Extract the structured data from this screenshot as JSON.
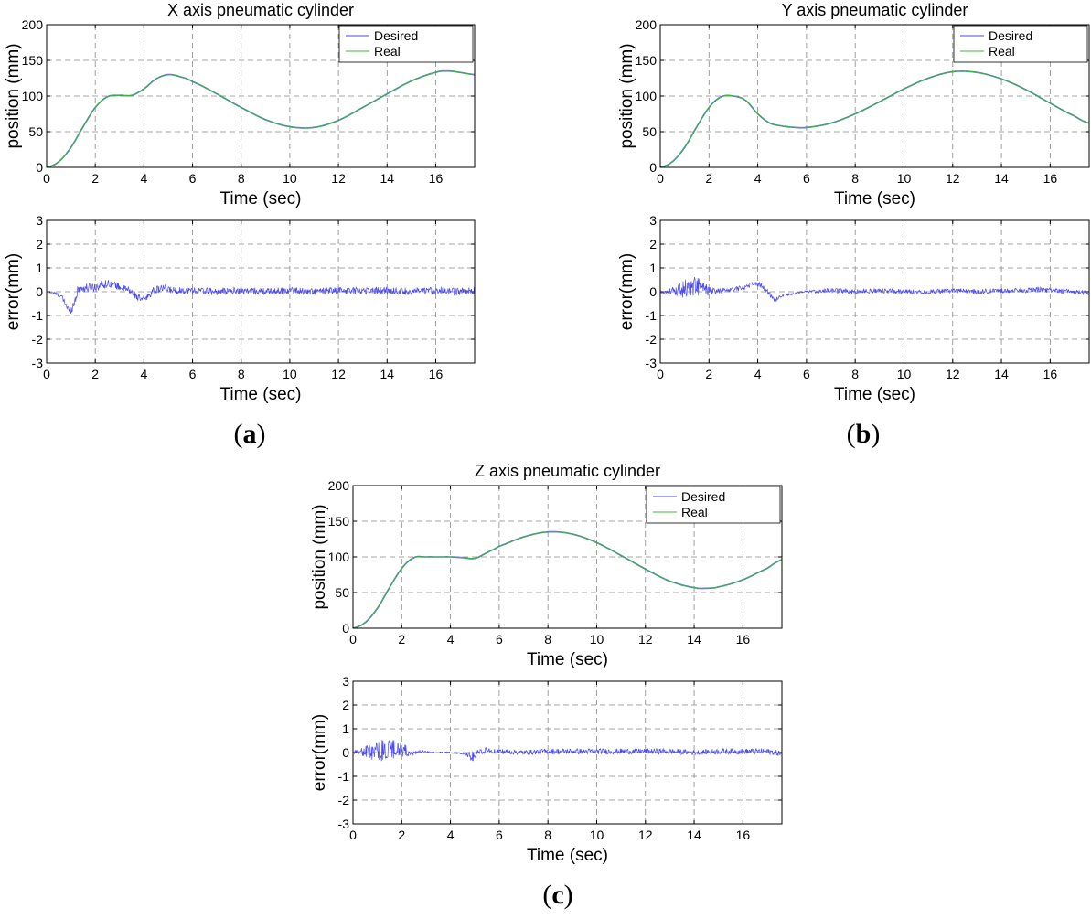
{
  "panels": [
    {
      "label_open": "(",
      "label_letter": "a",
      "label_close": ")",
      "title": "X axis pneumatic cylinder",
      "position_chart": {
        "type": "line",
        "title": "X axis pneumatic cylinder",
        "xlabel": "Time (sec)",
        "ylabel": "position (mm)",
        "xlim": [
          0,
          17.6
        ],
        "ylim": [
          0,
          200
        ],
        "xticks": [
          0,
          2,
          4,
          6,
          8,
          10,
          12,
          14,
          16
        ],
        "yticks": [
          0,
          50,
          100,
          150,
          200
        ],
        "grid": true,
        "legend": "top-right",
        "series": [
          {
            "name": "Desired",
            "color": "#4a4af0",
            "x": [
              0,
              0.5,
              1,
              1.5,
              2,
              2.5,
              3,
              3.5,
              4,
              4.5,
              5,
              5.5,
              6,
              7,
              8,
              9,
              10,
              11,
              12,
              13,
              14,
              15,
              16,
              16.5,
              17,
              17.6
            ],
            "y": [
              0,
              8,
              28,
              57,
              84,
              99,
              101,
              101,
              110,
              124,
              130,
              127,
              120,
              103,
              84,
              67,
              57,
              56,
              66,
              84,
              103,
              121,
              133,
              135,
              133,
              130
            ]
          },
          {
            "name": "Real",
            "color": "#3cb83c",
            "x": [
              0,
              0.5,
              1,
              1.5,
              2,
              2.5,
              3,
              3.5,
              4,
              4.5,
              5,
              5.5,
              6,
              7,
              8,
              9,
              10,
              11,
              12,
              13,
              14,
              15,
              16,
              16.5,
              17,
              17.6
            ],
            "y": [
              0,
              8,
              28,
              57,
              84,
              99,
              101,
              101,
              110,
              124,
              130,
              127,
              120,
              103,
              84,
              67,
              57,
              56,
              66,
              84,
              103,
              121,
              133,
              135,
              133,
              130
            ]
          }
        ]
      },
      "error_chart": {
        "type": "line",
        "xlabel": "Time (sec)",
        "ylabel": "error(mm)",
        "xlim": [
          0,
          17.6
        ],
        "ylim": [
          -3,
          3
        ],
        "xticks": [
          0,
          2,
          4,
          6,
          8,
          10,
          12,
          14,
          16
        ],
        "yticks": [
          -3,
          -2,
          -1,
          0,
          1,
          2,
          3
        ],
        "grid": true,
        "series": [
          {
            "name": "error",
            "color": "#4a4af0",
            "x": [
              0,
              0.3,
              0.6,
              0.8,
              0.95,
              1.1,
              1.3,
              1.6,
              2,
              2.3,
              2.6,
              3,
              3.4,
              3.7,
              3.9,
              4.1,
              4.4,
              4.8,
              5.2,
              6,
              7,
              8,
              9,
              10,
              11,
              12,
              13,
              14,
              15,
              16,
              17,
              17.6
            ],
            "y": [
              0,
              -0.05,
              -0.2,
              -0.55,
              -0.85,
              -0.55,
              0.1,
              0.15,
              0.2,
              0.3,
              0.35,
              0.2,
              0.05,
              -0.2,
              -0.35,
              -0.25,
              0.05,
              0.15,
              0.05,
              0.05,
              0.0,
              0.05,
              0.0,
              0.05,
              0.0,
              0.05,
              0.05,
              0.05,
              0.0,
              0.05,
              0.0,
              0.05
            ],
            "noise": [
              0.02,
              0.05,
              0.1,
              0.15,
              0.15,
              0.2,
              0.2,
              0.2,
              0.2,
              0.2,
              0.15,
              0.15,
              0.15,
              0.15,
              0.15,
              0.15,
              0.15,
              0.15,
              0.15,
              0.15,
              0.15,
              0.15,
              0.15,
              0.15,
              0.15,
              0.15,
              0.15,
              0.15,
              0.15,
              0.15,
              0.15,
              0.15
            ]
          }
        ]
      }
    },
    {
      "label_open": "(",
      "label_letter": "b",
      "label_close": ")",
      "title": "Y axis pneumatic cylinder",
      "position_chart": {
        "type": "line",
        "title": "Y axis pneumatic cylinder",
        "xlabel": "Time (sec)",
        "ylabel": "position (mm)",
        "xlim": [
          0,
          17.6
        ],
        "ylim": [
          0,
          200
        ],
        "xticks": [
          0,
          2,
          4,
          6,
          8,
          10,
          12,
          14,
          16
        ],
        "yticks": [
          0,
          50,
          100,
          150,
          200
        ],
        "grid": true,
        "legend": "top-right",
        "series": [
          {
            "name": "Desired",
            "color": "#4a4af0",
            "x": [
              0,
              0.5,
              1,
              1.5,
              2,
              2.5,
              3,
              3.5,
              4,
              4.5,
              5,
              5.5,
              6,
              7,
              8,
              9,
              10,
              11,
              12,
              13,
              14,
              15,
              16,
              17,
              17.6
            ],
            "y": [
              0,
              8,
              28,
              57,
              84,
              99,
              100,
              94,
              75,
              62,
              58,
              56,
              56,
              62,
              75,
              92,
              110,
              125,
              134,
              133,
              124,
              109,
              90,
              72,
              62
            ]
          },
          {
            "name": "Real",
            "color": "#3cb83c",
            "x": [
              0,
              0.5,
              1,
              1.5,
              2,
              2.5,
              3,
              3.5,
              4,
              4.5,
              5,
              5.5,
              6,
              7,
              8,
              9,
              10,
              11,
              12,
              13,
              14,
              15,
              16,
              17,
              17.6
            ],
            "y": [
              0,
              8,
              28,
              57,
              84,
              99,
              100,
              94,
              75,
              62,
              58,
              56,
              56,
              62,
              75,
              92,
              110,
              125,
              134,
              133,
              124,
              109,
              90,
              72,
              62
            ]
          }
        ]
      },
      "error_chart": {
        "type": "line",
        "xlabel": "Time (sec)",
        "ylabel": "error(mm)",
        "xlim": [
          0,
          17.6
        ],
        "ylim": [
          -3,
          3
        ],
        "xticks": [
          0,
          2,
          4,
          6,
          8,
          10,
          12,
          14,
          16
        ],
        "yticks": [
          -3,
          -2,
          -1,
          0,
          1,
          2,
          3
        ],
        "grid": true,
        "series": [
          {
            "name": "error",
            "color": "#4a4af0",
            "x": [
              0,
              0.3,
              0.6,
              0.9,
              1.2,
              1.5,
              1.8,
              2.1,
              2.5,
              3,
              3.5,
              3.8,
              4.1,
              4.4,
              4.7,
              5,
              6,
              7,
              8,
              9,
              10,
              11,
              12,
              13,
              14,
              15,
              15.6,
              16,
              17,
              17.6
            ],
            "y": [
              0,
              0.0,
              0.05,
              0.1,
              0.2,
              0.25,
              0.1,
              0.0,
              0.05,
              0.1,
              0.2,
              0.35,
              0.3,
              0.0,
              -0.35,
              -0.15,
              0.0,
              0.05,
              0.0,
              0.05,
              0.0,
              0.0,
              0.05,
              0.0,
              0.05,
              0.05,
              0.1,
              0.05,
              0.0,
              -0.05
            ],
            "noise": [
              0.05,
              0.1,
              0.2,
              0.35,
              0.45,
              0.45,
              0.3,
              0.15,
              0.1,
              0.1,
              0.1,
              0.1,
              0.1,
              0.1,
              0.1,
              0.05,
              0.05,
              0.1,
              0.1,
              0.1,
              0.1,
              0.1,
              0.1,
              0.1,
              0.1,
              0.1,
              0.12,
              0.1,
              0.1,
              0.1
            ]
          }
        ]
      }
    },
    {
      "label_open": "(",
      "label_letter": "c",
      "label_close": ")",
      "title": "Z axis pneumatic cylinder",
      "position_chart": {
        "type": "line",
        "title": "Z axis pneumatic cylinder",
        "xlabel": "Time (sec)",
        "ylabel": "position (mm)",
        "xlim": [
          0,
          17.6
        ],
        "ylim": [
          0,
          200
        ],
        "xticks": [
          0,
          2,
          4,
          6,
          8,
          10,
          12,
          14,
          16
        ],
        "yticks": [
          0,
          50,
          100,
          150,
          200
        ],
        "grid": true,
        "legend": "top-right",
        "series": [
          {
            "name": "Desired",
            "color": "#4a4af0",
            "x": [
              0,
              0.5,
              1,
              1.5,
              2,
              2.5,
              3,
              3.5,
              4,
              4.5,
              5,
              5.5,
              6,
              7,
              8,
              9,
              10,
              11,
              12,
              13,
              14,
              14.5,
              15,
              16,
              17,
              17.6
            ],
            "y": [
              0,
              8,
              28,
              57,
              84,
              99,
              100,
              100,
              100,
              99,
              98,
              106,
              115,
              128,
              135,
              132,
              120,
              102,
              83,
              66,
              57,
              56,
              58,
              68,
              84,
              96
            ]
          },
          {
            "name": "Real",
            "color": "#3cb83c",
            "x": [
              0,
              0.5,
              1,
              1.5,
              2,
              2.5,
              3,
              3.5,
              4,
              4.5,
              5,
              5.5,
              6,
              7,
              8,
              9,
              10,
              11,
              12,
              13,
              14,
              14.5,
              15,
              16,
              17,
              17.6
            ],
            "y": [
              0,
              8,
              28,
              57,
              84,
              99,
              100,
              100,
              100,
              99,
              98,
              106,
              115,
              128,
              135,
              132,
              120,
              102,
              83,
              66,
              57,
              56,
              58,
              68,
              84,
              96
            ]
          }
        ]
      },
      "error_chart": {
        "type": "line",
        "xlabel": "Time (sec)",
        "ylabel": "error(mm)",
        "xlim": [
          0,
          17.6
        ],
        "ylim": [
          -3,
          3
        ],
        "xticks": [
          0,
          2,
          4,
          6,
          8,
          10,
          12,
          14,
          16
        ],
        "yticks": [
          -3,
          -2,
          -1,
          0,
          1,
          2,
          3
        ],
        "grid": true,
        "series": [
          {
            "name": "error",
            "color": "#4a4af0",
            "x": [
              0,
              0.3,
              0.6,
              0.9,
              1.2,
              1.5,
              1.8,
              2.1,
              2.4,
              2.8,
              3.2,
              4,
              4.6,
              4.9,
              5.1,
              5.5,
              6,
              7,
              8,
              9,
              10,
              11,
              12,
              13,
              14,
              15,
              16,
              17,
              17.6
            ],
            "y": [
              0,
              0.05,
              0.05,
              0.0,
              0.1,
              0.15,
              0.15,
              0.1,
              0.0,
              0.05,
              0.0,
              0.0,
              -0.05,
              -0.2,
              0.0,
              0.1,
              0.05,
              0.0,
              0.05,
              0.05,
              0.05,
              0.05,
              0.05,
              0.05,
              0.0,
              0.05,
              0.05,
              0.05,
              -0.05
            ],
            "noise": [
              0.05,
              0.15,
              0.3,
              0.45,
              0.45,
              0.4,
              0.4,
              0.3,
              0.15,
              0.05,
              0.03,
              0.03,
              0.03,
              0.3,
              0.1,
              0.12,
              0.12,
              0.1,
              0.12,
              0.12,
              0.12,
              0.12,
              0.12,
              0.12,
              0.1,
              0.12,
              0.12,
              0.12,
              0.12
            ]
          }
        ]
      }
    }
  ]
}
